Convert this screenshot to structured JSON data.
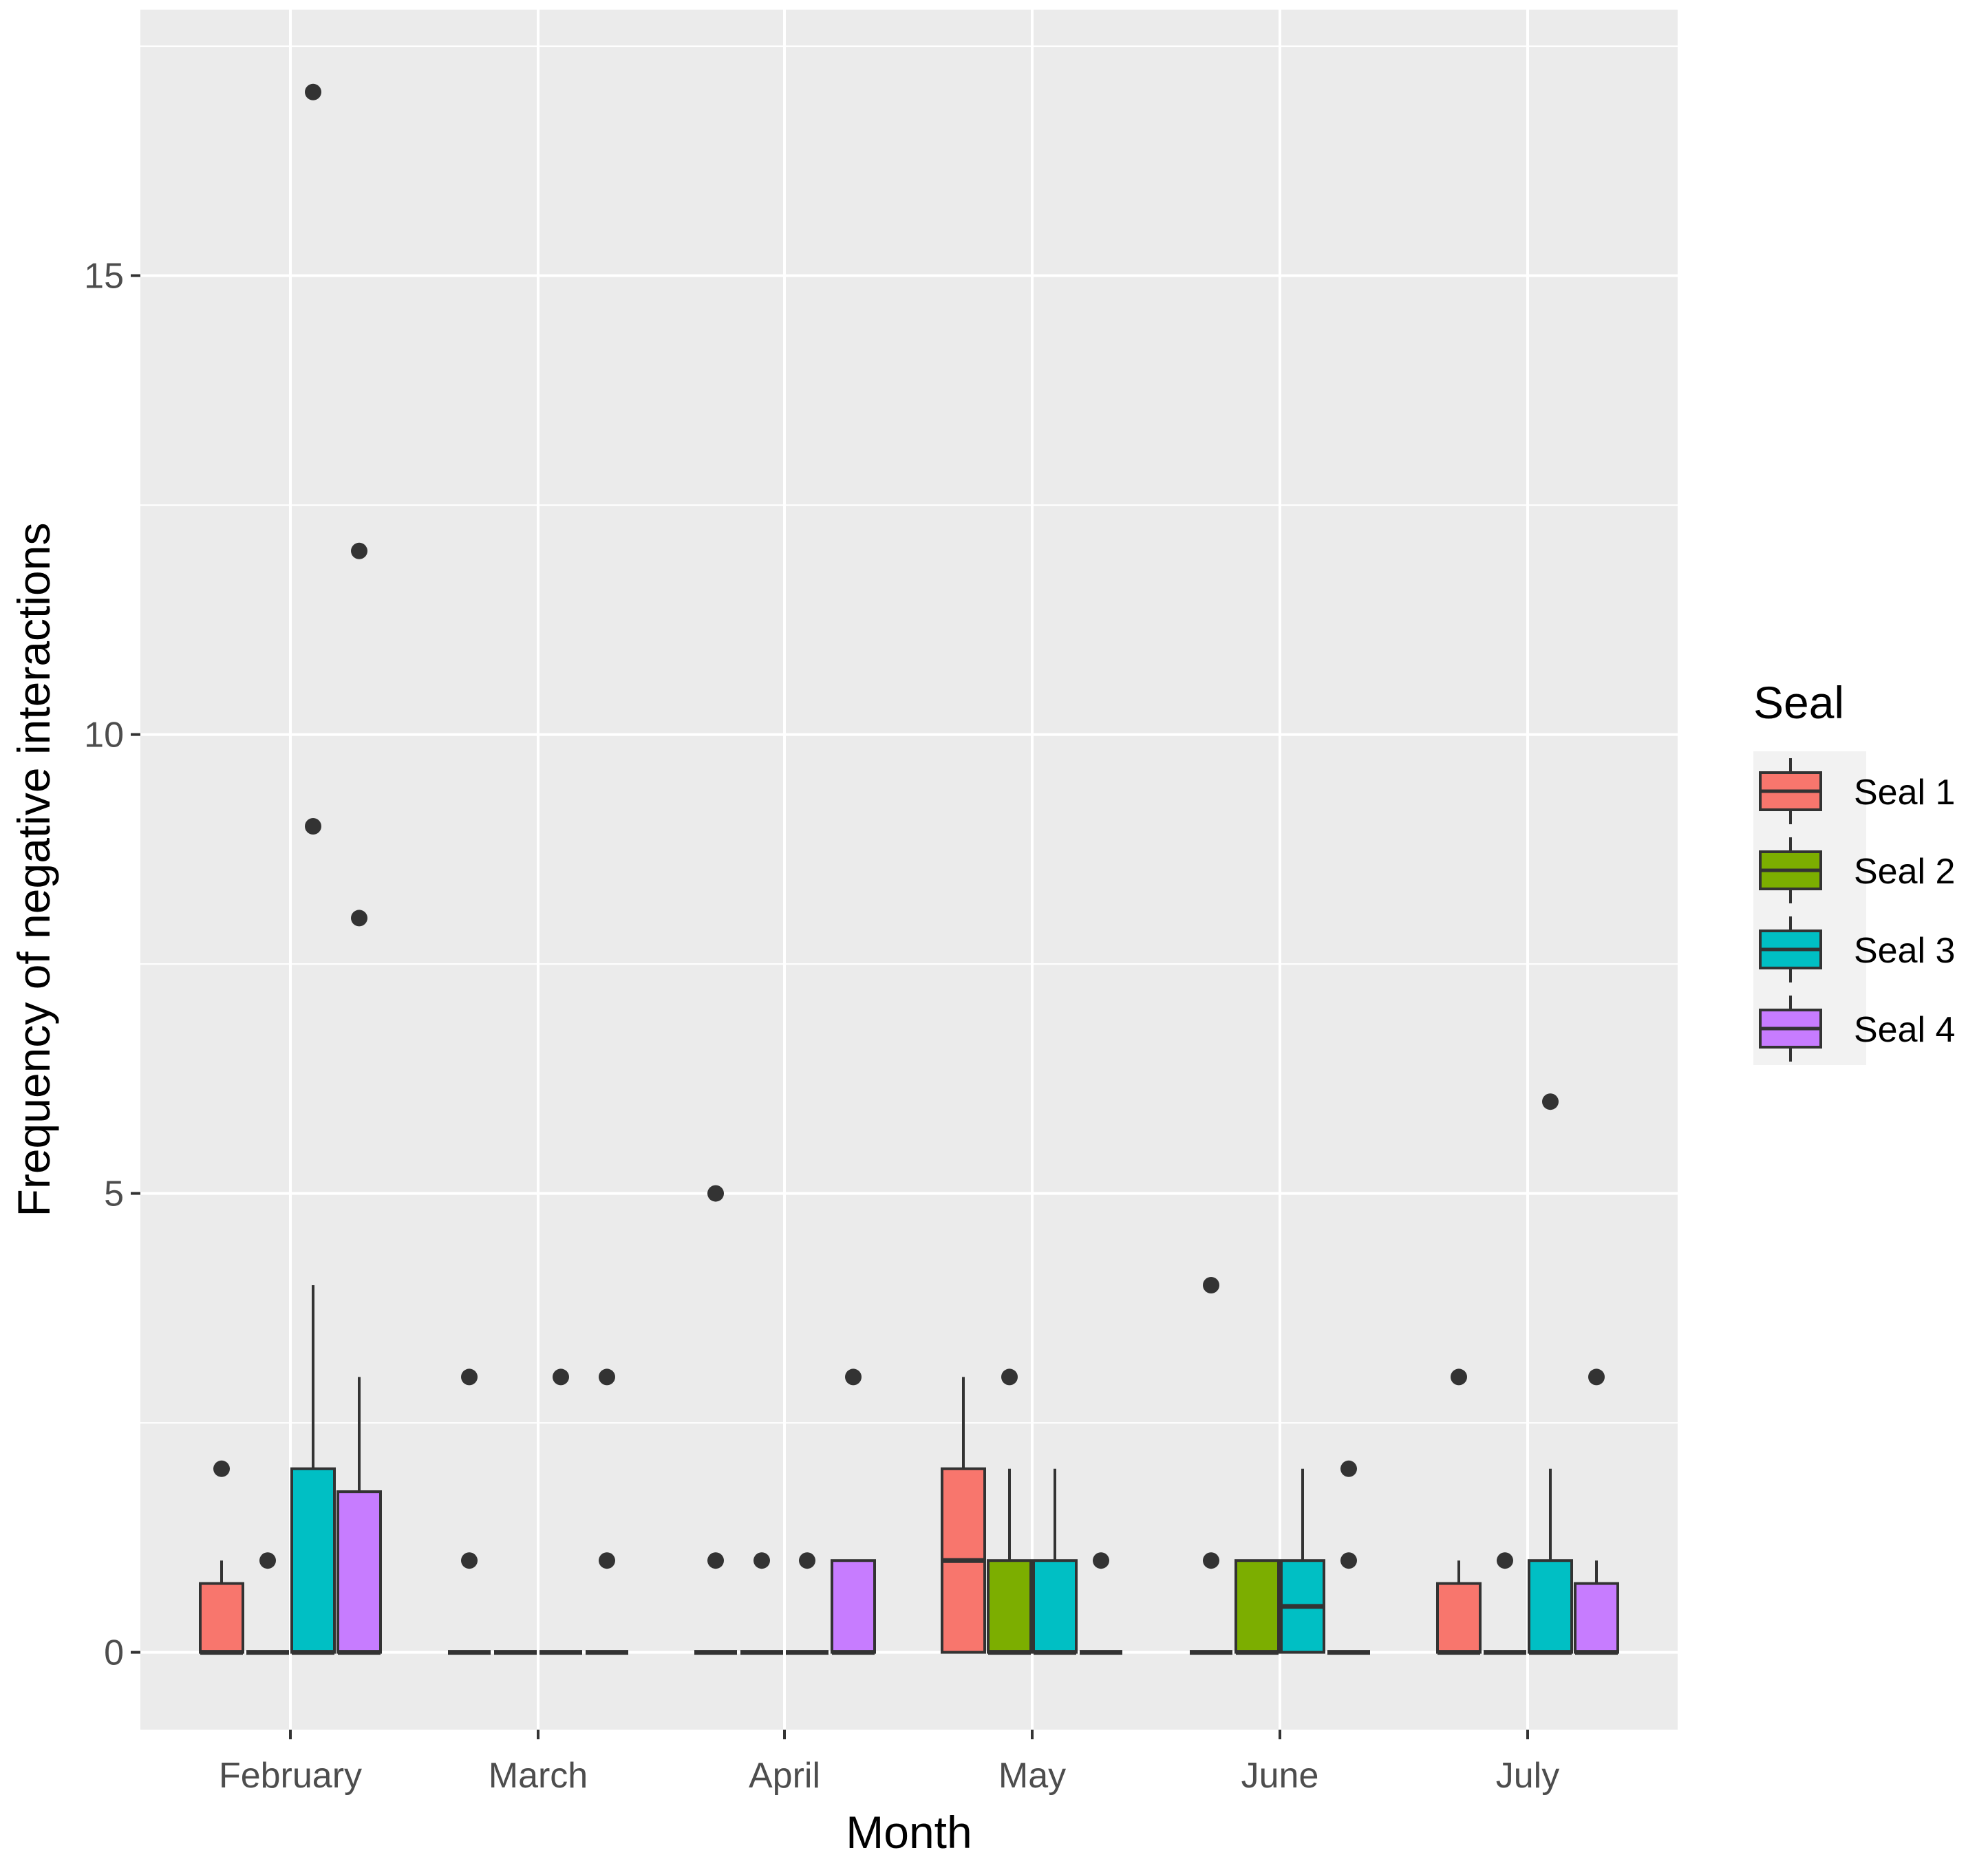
{
  "chart_data": {
    "type": "boxplot",
    "title": "",
    "xlabel": "Month",
    "ylabel": "Frequency of negative interactions",
    "ylim": [
      -0.8,
      17.6
    ],
    "yticks": [
      0,
      5,
      10,
      15
    ],
    "ytick_labels": [
      "0",
      "5",
      "10",
      "15"
    ],
    "categories": [
      "February",
      "March",
      "April",
      "May",
      "June",
      "July"
    ],
    "grid": true,
    "legend": {
      "title": "Seal",
      "placement": "right",
      "entries": [
        "Seal 1",
        "Seal 2",
        "Seal 3",
        "Seal 4"
      ]
    },
    "series": [
      {
        "name": "Seal 1",
        "color": "#F8766D",
        "boxes": [
          {
            "month": "February",
            "lower_whisker": 0,
            "q1": 0,
            "median": 0,
            "q3": 0.75,
            "upper_whisker": 1,
            "outliers": [
              2
            ]
          },
          {
            "month": "March",
            "lower_whisker": 0,
            "q1": 0,
            "median": 0,
            "q3": 0,
            "upper_whisker": 0,
            "outliers": [
              1,
              3
            ]
          },
          {
            "month": "April",
            "lower_whisker": 0,
            "q1": 0,
            "median": 0,
            "q3": 0,
            "upper_whisker": 0,
            "outliers": [
              1,
              5
            ]
          },
          {
            "month": "May",
            "lower_whisker": 0,
            "q1": 0,
            "median": 1,
            "q3": 2,
            "upper_whisker": 3,
            "outliers": []
          },
          {
            "month": "June",
            "lower_whisker": 0,
            "q1": 0,
            "median": 0,
            "q3": 0,
            "upper_whisker": 0,
            "outliers": [
              1,
              4
            ]
          },
          {
            "month": "July",
            "lower_whisker": 0,
            "q1": 0,
            "median": 0,
            "q3": 0.75,
            "upper_whisker": 1,
            "outliers": [
              3
            ]
          }
        ]
      },
      {
        "name": "Seal 2",
        "color": "#7CAE00",
        "boxes": [
          {
            "month": "February",
            "lower_whisker": 0,
            "q1": 0,
            "median": 0,
            "q3": 0,
            "upper_whisker": 0,
            "outliers": [
              1
            ]
          },
          {
            "month": "March",
            "lower_whisker": 0,
            "q1": 0,
            "median": 0,
            "q3": 0,
            "upper_whisker": 0,
            "outliers": []
          },
          {
            "month": "April",
            "lower_whisker": 0,
            "q1": 0,
            "median": 0,
            "q3": 0,
            "upper_whisker": 0,
            "outliers": [
              1
            ]
          },
          {
            "month": "May",
            "lower_whisker": 0,
            "q1": 0,
            "median": 0,
            "q3": 1,
            "upper_whisker": 2,
            "outliers": [
              3
            ]
          },
          {
            "month": "June",
            "lower_whisker": 0,
            "q1": 0,
            "median": 0,
            "q3": 1,
            "upper_whisker": 1,
            "outliers": []
          },
          {
            "month": "July",
            "lower_whisker": 0,
            "q1": 0,
            "median": 0,
            "q3": 0,
            "upper_whisker": 0,
            "outliers": [
              1
            ]
          }
        ]
      },
      {
        "name": "Seal 3",
        "color": "#00BFC4",
        "boxes": [
          {
            "month": "February",
            "lower_whisker": 0,
            "q1": 0,
            "median": 0,
            "q3": 2,
            "upper_whisker": 4,
            "outliers": [
              9,
              17
            ]
          },
          {
            "month": "March",
            "lower_whisker": 0,
            "q1": 0,
            "median": 0,
            "q3": 0,
            "upper_whisker": 0,
            "outliers": [
              3
            ]
          },
          {
            "month": "April",
            "lower_whisker": 0,
            "q1": 0,
            "median": 0,
            "q3": 0,
            "upper_whisker": 0,
            "outliers": [
              1
            ]
          },
          {
            "month": "May",
            "lower_whisker": 0,
            "q1": 0,
            "median": 0,
            "q3": 1,
            "upper_whisker": 2,
            "outliers": []
          },
          {
            "month": "June",
            "lower_whisker": 0,
            "q1": 0,
            "median": 0.5,
            "q3": 1,
            "upper_whisker": 2,
            "outliers": []
          },
          {
            "month": "July",
            "lower_whisker": 0,
            "q1": 0,
            "median": 0,
            "q3": 1,
            "upper_whisker": 2,
            "outliers": [
              6
            ]
          }
        ]
      },
      {
        "name": "Seal 4",
        "color": "#C77CFF",
        "boxes": [
          {
            "month": "February",
            "lower_whisker": 0,
            "q1": 0,
            "median": 0,
            "q3": 1.75,
            "upper_whisker": 3,
            "outliers": [
              8,
              12
            ]
          },
          {
            "month": "March",
            "lower_whisker": 0,
            "q1": 0,
            "median": 0,
            "q3": 0,
            "upper_whisker": 0,
            "outliers": [
              1,
              3
            ]
          },
          {
            "month": "April",
            "lower_whisker": 0,
            "q1": 0,
            "median": 0,
            "q3": 1,
            "upper_whisker": 1,
            "outliers": [
              3
            ]
          },
          {
            "month": "May",
            "lower_whisker": 0,
            "q1": 0,
            "median": 0,
            "q3": 0,
            "upper_whisker": 0,
            "outliers": [
              1
            ]
          },
          {
            "month": "June",
            "lower_whisker": 0,
            "q1": 0,
            "median": 0,
            "q3": 0,
            "upper_whisker": 0,
            "outliers": [
              1,
              2
            ]
          },
          {
            "month": "July",
            "lower_whisker": 0,
            "q1": 0,
            "median": 0,
            "q3": 0.75,
            "upper_whisker": 1,
            "outliers": [
              3
            ]
          }
        ]
      }
    ]
  }
}
